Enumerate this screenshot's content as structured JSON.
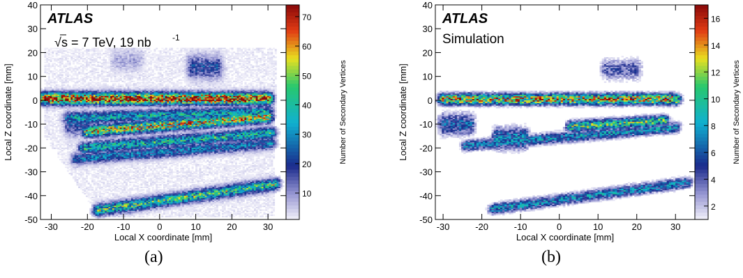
{
  "chart_data": [
    {
      "type": "heatmap",
      "panel_label": "(a)",
      "title": "",
      "label_main": "ATLAS",
      "label_energy_prefix": "s = 7 TeV, 19 nb",
      "label_energy_exp": "-1",
      "xlabel": "Local X coordinate [mm]",
      "ylabel": "Local Z coordinate [mm]",
      "zlabel": "Number of Secondary Vertices",
      "xlim": [
        -33,
        35
      ],
      "ylim": [
        -50,
        40
      ],
      "zlim": [
        1,
        74
      ],
      "xticks": [
        -30,
        -20,
        -10,
        0,
        10,
        20,
        30
      ],
      "yticks": [
        -50,
        -40,
        -30,
        -20,
        -10,
        0,
        10,
        20,
        30,
        40
      ],
      "zticks": [
        10,
        20,
        30,
        40,
        50,
        60,
        70
      ],
      "bins_x": 130,
      "bins_y": 170,
      "structures": [
        {
          "name": "band z=0",
          "x_range": [
            -32,
            30
          ],
          "z": 0.8,
          "z_slope": -0.002,
          "max_count": 70
        },
        {
          "name": "band z=-7",
          "x_range": [
            -25,
            30
          ],
          "z": -7.5,
          "z_slope": 0.05,
          "max_count": 32
        },
        {
          "name": "band z=-12",
          "x_range": [
            -20,
            30
          ],
          "z": -13,
          "z_slope": 0.12,
          "max_count": 52
        },
        {
          "name": "band z=-17",
          "x_range": [
            -21,
            31
          ],
          "z": -20,
          "z_slope": 0.12,
          "max_count": 35
        },
        {
          "name": "band z=-22",
          "x_range": [
            -23,
            31
          ],
          "z": -24.5,
          "z_slope": 0.12,
          "max_count": 25
        },
        {
          "name": "band z=-45",
          "x_range": [
            -17,
            32
          ],
          "z": -46,
          "z_slope": 0.22,
          "max_count": 40
        },
        {
          "name": "blob",
          "x_range": [
            9,
            16
          ],
          "z": 14,
          "z_slope": 0,
          "max_count": 18
        },
        {
          "name": "blob",
          "x_range": [
            -25,
            -20
          ],
          "z": -10,
          "z_slope": 0,
          "max_count": 18
        },
        {
          "name": "blob",
          "x_range": [
            -12,
            -6
          ],
          "z": 17,
          "z_slope": 0,
          "max_count": 6
        }
      ]
    },
    {
      "type": "heatmap",
      "panel_label": "(b)",
      "title": "",
      "label_main": "ATLAS",
      "label_sub": "Simulation",
      "xlabel": "Local X coordinate [mm]",
      "ylabel": "Local Z coordinate [mm]",
      "zlabel": "Number of Secondary Vertices",
      "xlim": [
        -32,
        35
      ],
      "ylim": [
        -50,
        40
      ],
      "zlim": [
        1,
        17
      ],
      "xticks": [
        -30,
        -20,
        -10,
        0,
        10,
        20,
        30
      ],
      "yticks": [
        -50,
        -40,
        -30,
        -20,
        -10,
        0,
        10,
        20,
        30,
        40
      ],
      "zticks": [
        2,
        4,
        6,
        8,
        10,
        12,
        14,
        16
      ],
      "bins_x": 120,
      "bins_y": 160,
      "structures": [
        {
          "name": "band z=0",
          "x_range": [
            -30,
            30
          ],
          "z": 0.5,
          "z_slope": 0,
          "max_count": 13
        },
        {
          "name": "band z=-10",
          "x_range": [
            3,
            27
          ],
          "z": -11,
          "z_slope": 0.1,
          "max_count": 10
        },
        {
          "name": "band z=-17",
          "x_range": [
            -24,
            30
          ],
          "z": -19,
          "z_slope": 0.14,
          "max_count": 7
        },
        {
          "name": "band z=-45",
          "x_range": [
            -17,
            33
          ],
          "z": -45.5,
          "z_slope": 0.22,
          "max_count": 7
        },
        {
          "name": "blob",
          "x_range": [
            -16,
            -9
          ],
          "z": -16,
          "z_slope": 0,
          "max_count": 7
        },
        {
          "name": "blob",
          "x_range": [
            -30,
            -23
          ],
          "z": -10,
          "z_slope": 0,
          "max_count": 6
        },
        {
          "name": "blob",
          "x_range": [
            12,
            20
          ],
          "z": 13,
          "z_slope": 0,
          "max_count": 4
        }
      ]
    }
  ],
  "colors": {
    "palette_low": "#f2f1fa",
    "palette_mid_low": "#1a2a8c",
    "palette_mid": "#10b0d0",
    "palette_mid_high": "#e8e020",
    "palette_high": "#8a0a0a"
  }
}
